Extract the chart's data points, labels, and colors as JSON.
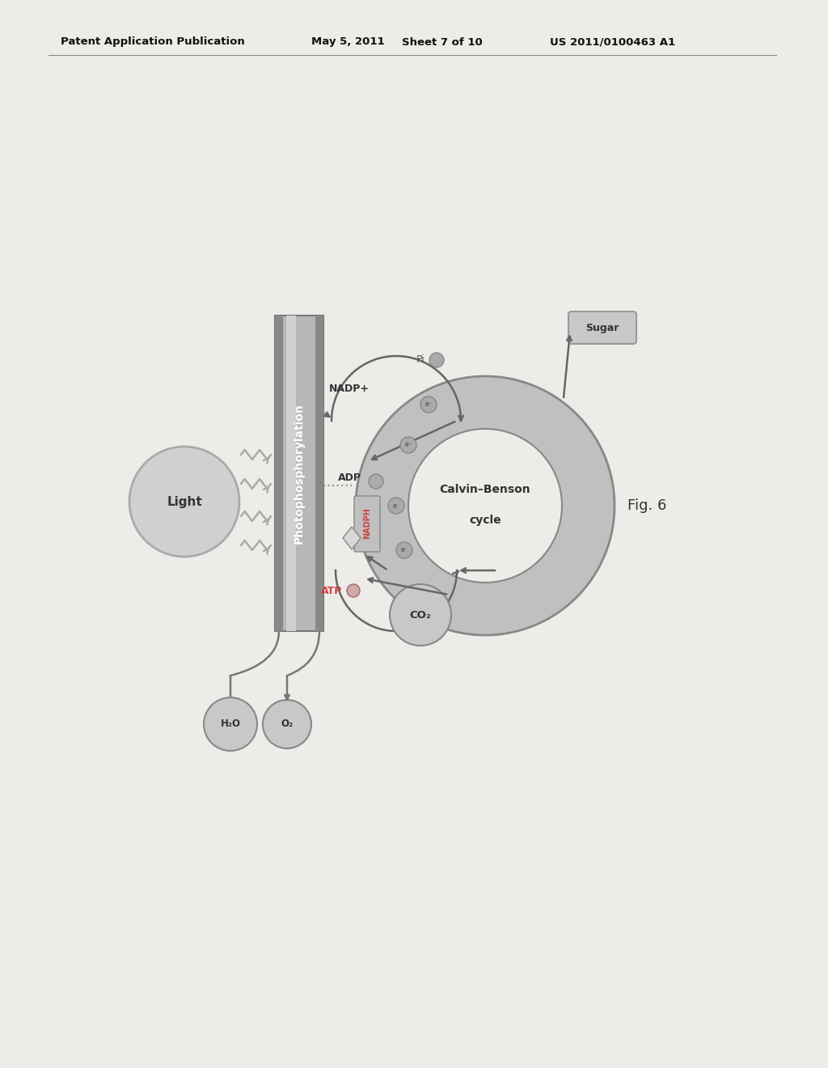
{
  "bg_color": "#eeece8",
  "header_text": "Patent Application Publication",
  "header_date": "May 5, 2011",
  "header_sheet": "Sheet 7 of 10",
  "header_patent": "US 2011/0100463 A1",
  "fig_label": "Fig. 6",
  "photophosphorylation_label": "Photophosphorylation",
  "light_label": "Light",
  "calvin_label1": "Calvin–Benson",
  "calvin_label2": "cycle",
  "sugar_label": "Sugar",
  "h2o_label": "H₂O",
  "o2_label": "O₂",
  "co2_label": "CO₂",
  "nadp_label": "NADP+",
  "adp_label": "ADP",
  "atp_label": "ATP",
  "nadph_label": "NADPH",
  "pi_label": "Pi",
  "col_face": "#b8b8b8",
  "col_dark_face": "#888888",
  "col_light_stripe": "#d0d0d0",
  "light_circle_face": "#d0d0d0",
  "light_circle_edge": "#aaaaaa",
  "calvin_outer_face": "#c0c0c0",
  "calvin_inner_face": "#eeece8",
  "arrow_color": "#666666",
  "dot_color": "#aaaaaa",
  "text_dark": "#333333",
  "text_bold_dark": "#222222",
  "sugar_box_face": "#c8c8c8",
  "sugar_box_edge": "#999999",
  "molecule_face": "#c8c8c8",
  "molecule_edge": "#888888",
  "nadph_bar_face": "#c0c0c0",
  "nadph_bar_edge": "#888888"
}
